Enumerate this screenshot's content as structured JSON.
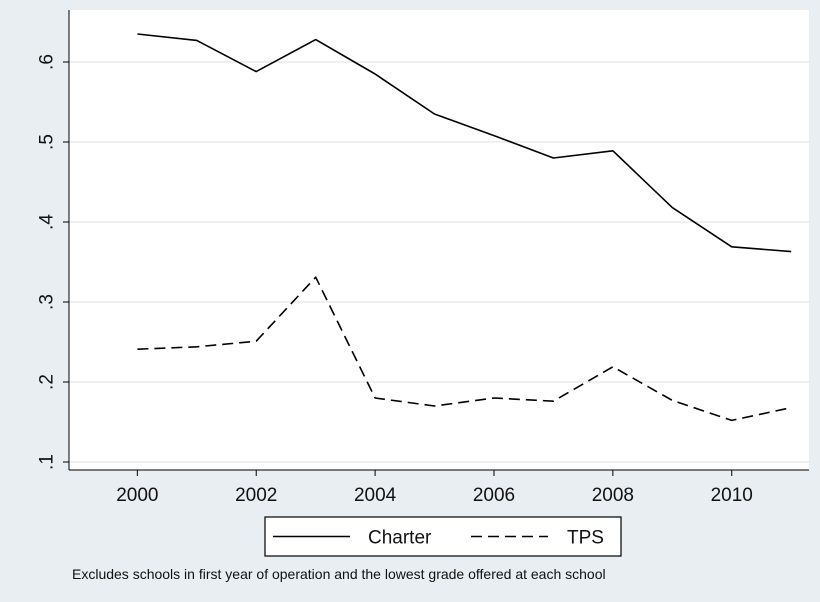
{
  "chart_data": {
    "type": "line",
    "x": [
      2000,
      2001,
      2002,
      2003,
      2004,
      2005,
      2006,
      2007,
      2008,
      2009,
      2010,
      2011
    ],
    "series": [
      {
        "name": "Charter",
        "values": [
          0.635,
          0.627,
          0.588,
          0.628,
          0.585,
          0.535,
          0.508,
          0.48,
          0.489,
          0.418,
          0.369,
          0.363
        ],
        "style": "solid",
        "color": "#000000"
      },
      {
        "name": "TPS",
        "values": [
          0.241,
          0.244,
          0.251,
          0.331,
          0.18,
          0.17,
          0.18,
          0.176,
          0.219,
          0.177,
          0.152,
          0.168
        ],
        "style": "dashed",
        "color": "#000000"
      }
    ],
    "xticks": [
      "2000",
      "2002",
      "2004",
      "2006",
      "2008",
      "2010"
    ],
    "yticks": [
      ".1",
      ".2",
      ".3",
      ".4",
      ".5",
      ".6"
    ],
    "xlim": [
      1998.85,
      2011.3
    ],
    "ylim": [
      0.09,
      0.665
    ],
    "grid": true,
    "legend": "bottom",
    "note": "Excludes schools in first year of operation and the lowest grade offered at each school"
  },
  "colors": {
    "background": "#e8eef2",
    "plot_background": "#ffffff",
    "grid": "#e3e7ea",
    "axis": "#000000"
  }
}
